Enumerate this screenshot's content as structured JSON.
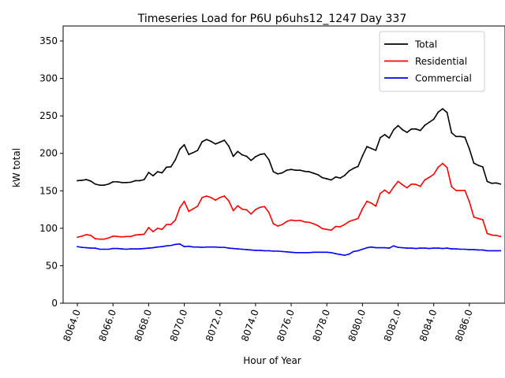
{
  "chart_data": {
    "type": "line",
    "title": "Timeseries Load for P6U p6uhs12_1247  Day 337",
    "xlabel": "Hour of Year",
    "ylabel": "kW total",
    "xlim": [
      8063.2,
      8088.0
    ],
    "ylim": [
      0,
      370
    ],
    "xticks": [
      8064,
      8066,
      8068,
      8070,
      8072,
      8074,
      8076,
      8078,
      8080,
      8082,
      8084,
      8086
    ],
    "xtick_labels": [
      "8064.0",
      "8066.0",
      "8068.0",
      "8070.0",
      "8072.0",
      "8074.0",
      "8076.0",
      "8078.0",
      "8080.0",
      "8082.0",
      "8084.0",
      "8086.0"
    ],
    "yticks": [
      0,
      50,
      100,
      150,
      200,
      250,
      300,
      350
    ],
    "ytick_labels": [
      "0",
      "50",
      "100",
      "150",
      "200",
      "250",
      "300",
      "350"
    ],
    "legend_position": "top-right",
    "x": [
      8064.0,
      8064.25,
      8064.5,
      8064.75,
      8065.0,
      8065.25,
      8065.5,
      8065.75,
      8066.0,
      8066.25,
      8066.5,
      8066.75,
      8067.0,
      8067.25,
      8067.5,
      8067.75,
      8068.0,
      8068.25,
      8068.5,
      8068.75,
      8069.0,
      8069.25,
      8069.5,
      8069.75,
      8070.0,
      8070.25,
      8070.5,
      8070.75,
      8071.0,
      8071.25,
      8071.5,
      8071.75,
      8072.0,
      8072.25,
      8072.5,
      8072.75,
      8073.0,
      8073.25,
      8073.5,
      8073.75,
      8074.0,
      8074.25,
      8074.5,
      8074.75,
      8075.0,
      8075.25,
      8075.5,
      8075.75,
      8076.0,
      8076.25,
      8076.5,
      8076.75,
      8077.0,
      8077.25,
      8077.5,
      8077.75,
      8078.0,
      8078.25,
      8078.5,
      8078.75,
      8079.0,
      8079.25,
      8079.5,
      8079.75,
      8080.0,
      8080.25,
      8080.5,
      8080.75,
      8081.0,
      8081.25,
      8081.5,
      8081.75,
      8082.0,
      8082.25,
      8082.5,
      8082.75,
      8083.0,
      8083.25,
      8083.5,
      8083.75,
      8084.0,
      8084.25,
      8084.5,
      8084.75,
      8085.0,
      8085.25,
      8085.5,
      8085.75,
      8086.0,
      8086.25,
      8086.5,
      8086.75,
      8087.0,
      8087.25,
      8087.5,
      8087.75
    ],
    "series": [
      {
        "name": "Total",
        "color": "#000000",
        "values": [
          163.5,
          164,
          165,
          163,
          159,
          157.5,
          157.5,
          159,
          162,
          162,
          161,
          161,
          161.5,
          163.5,
          163.5,
          165,
          174.5,
          170,
          175.5,
          174,
          181.5,
          182,
          191.5,
          205.5,
          211.5,
          198.5,
          201,
          204,
          215.5,
          218.5,
          216,
          212.5,
          215,
          217.5,
          209.5,
          196,
          202.5,
          198,
          196,
          190.5,
          195.5,
          198.5,
          199.5,
          191.5,
          175.5,
          172.5,
          174,
          177.5,
          178.5,
          177.5,
          177.5,
          176,
          175.5,
          173.5,
          171.5,
          167.5,
          166,
          164.5,
          168.5,
          167,
          170.5,
          176.5,
          180,
          182.5,
          196.5,
          209,
          206.5,
          204,
          221,
          225,
          220.5,
          231.5,
          237,
          231.5,
          228,
          232.5,
          232.5,
          230.5,
          237.5,
          241.5,
          245.5,
          255,
          259.5,
          254.5,
          227.5,
          222.5,
          222.5,
          221.5,
          206,
          187,
          184,
          182,
          162.5,
          160,
          160.5,
          159
        ]
      },
      {
        "name": "Residential",
        "color": "#ff0000",
        "values": [
          88,
          89.5,
          91.5,
          90.5,
          86,
          85.5,
          85.5,
          87,
          89.5,
          89,
          88.5,
          89,
          89,
          91,
          91.5,
          92,
          101,
          95.5,
          100,
          98.5,
          105,
          105,
          111,
          127.5,
          136,
          122.5,
          126,
          129.5,
          141,
          143,
          141,
          137.5,
          141,
          143,
          136.5,
          123.5,
          130,
          125.5,
          124.5,
          119,
          125,
          128,
          129,
          121,
          106,
          103,
          105,
          109,
          111,
          110,
          110.5,
          108.5,
          108,
          106,
          103.5,
          99.5,
          98.5,
          97.5,
          102.5,
          102,
          105,
          109,
          111,
          113,
          126,
          136,
          133.5,
          129.5,
          146.5,
          151,
          146.5,
          155,
          162.5,
          158,
          154,
          159,
          158.5,
          156,
          164.5,
          168,
          172,
          181.5,
          186.5,
          181,
          155.5,
          150.5,
          150.5,
          150.5,
          135.5,
          115,
          113,
          111.5,
          93,
          91,
          90.5,
          89
        ]
      },
      {
        "name": "Commercial",
        "color": "#0000ff",
        "values": [
          75.5,
          74.5,
          74,
          73.5,
          73.5,
          72,
          72,
          72,
          73,
          73,
          72.5,
          72,
          72.5,
          72.5,
          72.5,
          73,
          73.5,
          74,
          75,
          75.5,
          76.5,
          77,
          78.5,
          79,
          75.5,
          76,
          75,
          75,
          74.5,
          75,
          75,
          75,
          74.5,
          74.5,
          73.5,
          73,
          72.5,
          72,
          71.5,
          71,
          70.5,
          70.5,
          70,
          70,
          69.5,
          69.5,
          69,
          68.5,
          68,
          67.5,
          67.5,
          67.5,
          67.5,
          68,
          68,
          68,
          68,
          67.5,
          66,
          65,
          64,
          65.5,
          69,
          70,
          72,
          74,
          75,
          74,
          74,
          74,
          73.5,
          76.5,
          74.5,
          74,
          73.5,
          73.5,
          73,
          73.5,
          73.5,
          73,
          73.5,
          73.5,
          73,
          73.5,
          72.5,
          72.5,
          72,
          72,
          71.5,
          71.5,
          71,
          71,
          70,
          70,
          70,
          70
        ]
      }
    ]
  }
}
